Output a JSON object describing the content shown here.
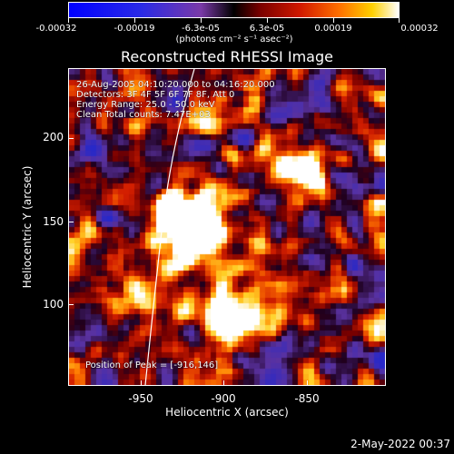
{
  "colorbar": {
    "ticks": [
      "-0.00032",
      "-0.00019",
      "-6.3e-05",
      "6.3e-05",
      "0.00019",
      "0.00032"
    ],
    "units": "(photons cm⁻² s⁻¹ asec⁻²)"
  },
  "plot": {
    "title": "Reconstructed RHESSI Image",
    "info_lines": [
      "26-Aug-2005 04:10:20.000 to 04:16:20.000",
      "Detectors: 3F 4F 5F 6F 7F 8F, Att 0",
      "Energy Range: 25.0 - 50.0 keV",
      "Clean    Total counts: 7.47E+03"
    ],
    "peak_text": "Position of Peak = [-916,146]",
    "x_axis": {
      "label": "Heliocentric X (arcsec)",
      "ticks": [
        "-950",
        "-900",
        "-850"
      ]
    },
    "y_axis": {
      "label": "Heliocentric Y (arcsec)",
      "ticks": [
        "200",
        "150",
        "100"
      ]
    }
  },
  "colors": {
    "negative": "#2a2ae6",
    "background": "#000000",
    "peak": "#ffffff"
  },
  "timestamp": "2-May-2022 00:37"
}
